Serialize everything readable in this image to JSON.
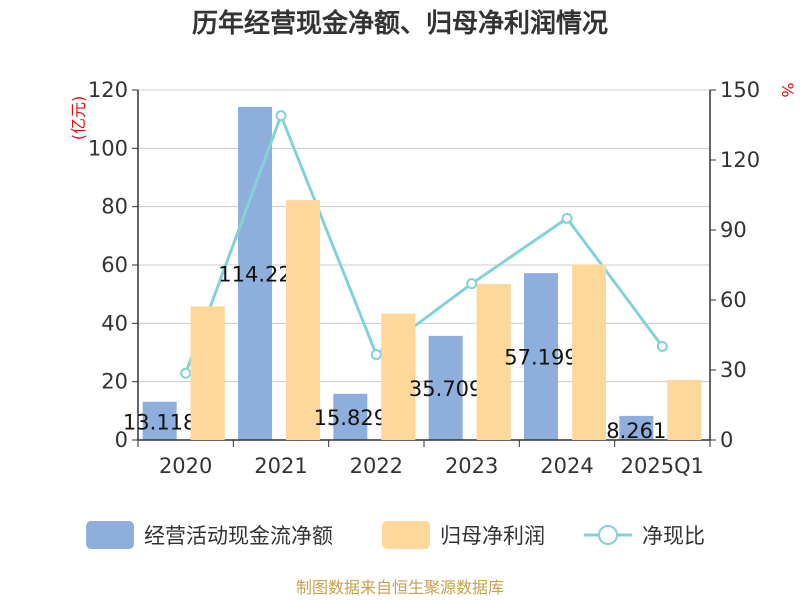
{
  "chart_data": {
    "type": "bar",
    "title": "历年经营现金净额、归母净利润情况",
    "categories": [
      "2020",
      "2021",
      "2022",
      "2023",
      "2024",
      "2025Q1"
    ],
    "series": [
      {
        "name": "经营活动现金流净额",
        "type": "bar",
        "axis": "left",
        "color": "#8eaedb",
        "values": [
          13.118,
          114.22,
          15.829,
          35.709,
          57.199,
          8.261
        ],
        "labels": [
          "13.118",
          "114.22",
          "15.829",
          "35.709",
          "57.199",
          "8.261"
        ]
      },
      {
        "name": "归母净利润",
        "type": "bar",
        "axis": "left",
        "color": "#fdd89a",
        "values": [
          45.8,
          82.2,
          43.3,
          53.4,
          60.2,
          20.6
        ]
      },
      {
        "name": "净现比",
        "type": "line",
        "axis": "right",
        "color": "#85d2d6",
        "values": [
          28.6,
          139.0,
          36.6,
          67.0,
          95.0,
          40.1
        ]
      }
    ],
    "ylabel_left": "(亿元)",
    "ylabel_right": "%",
    "ylim_left": [
      0,
      120
    ],
    "yticks_left": [
      "0",
      "20",
      "40",
      "60",
      "80",
      "100",
      "120"
    ],
    "ylim_right": [
      0,
      150
    ],
    "yticks_right": [
      "0",
      "30",
      "60",
      "90",
      "120",
      "150"
    ],
    "grid": true,
    "legend_position": "bottom"
  },
  "source": "制图数据来自恒生聚源数据库"
}
